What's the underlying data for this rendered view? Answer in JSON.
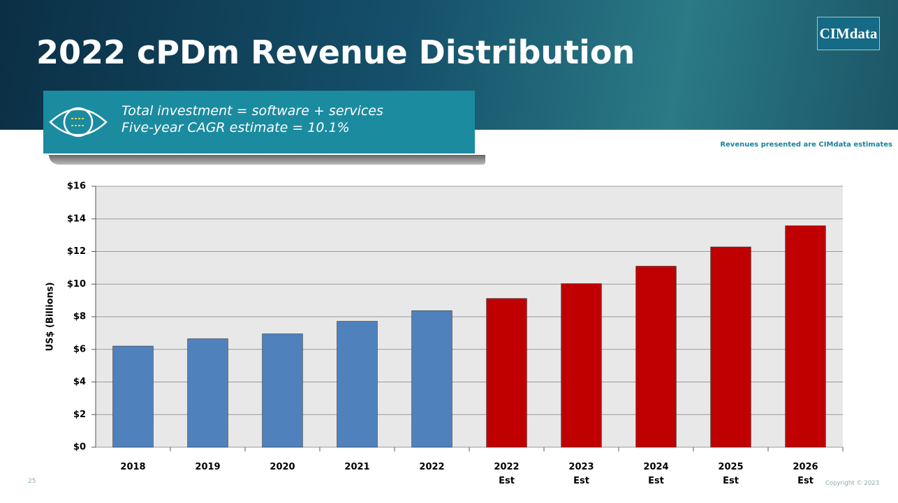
{
  "slide": {
    "logo": "CIMdata",
    "callout": [
      "Total investment = software + services",
      "Five-year CAGR estimate = 10.1%"
    ],
    "note": "Revenues presented are CIMdata estimates",
    "page_number": "25",
    "copyright": "Copyright © 2023"
  },
  "chart_data": {
    "type": "bar",
    "title": "2022 cPDm Revenue Distribution",
    "y_label": "US$ (Billions)",
    "categories": [
      "2018",
      "2019",
      "2020",
      "2021",
      "2022",
      "2022 Est",
      "2023 Est",
      "2024 Est",
      "2025 Est",
      "2026 Est"
    ],
    "values": [
      6.2,
      6.65,
      6.95,
      7.72,
      8.37,
      9.12,
      10.03,
      11.1,
      12.28,
      13.58
    ],
    "colors": [
      "#4f81bd",
      "#4f81bd",
      "#4f81bd",
      "#4f81bd",
      "#4f81bd",
      "#c00000",
      "#c00000",
      "#c00000",
      "#c00000",
      "#c00000"
    ],
    "ylim": [
      0,
      16
    ],
    "yticks": [
      {
        "value": 0,
        "label": "$0"
      },
      {
        "value": 2,
        "label": "$2"
      },
      {
        "value": 4,
        "label": "$4"
      },
      {
        "value": 6,
        "label": "$6"
      },
      {
        "value": 8,
        "label": "$8"
      },
      {
        "value": 10,
        "label": "$10"
      },
      {
        "value": 12,
        "label": "$12"
      },
      {
        "value": 14,
        "label": "$14"
      },
      {
        "value": 16,
        "label": "$16"
      }
    ],
    "grid": true
  }
}
